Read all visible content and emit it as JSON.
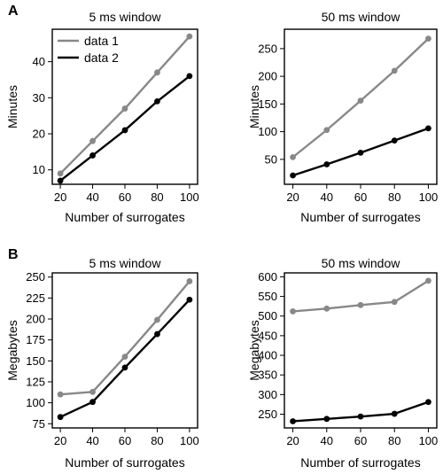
{
  "panel_labels": [
    "A",
    "B"
  ],
  "chart_data": [
    {
      "type": "line",
      "panel": "A",
      "title": "5 ms window",
      "xlabel": "Number of surrogates",
      "ylabel": "Minutes",
      "x": [
        20,
        40,
        60,
        80,
        100
      ],
      "xlim": [
        15,
        105
      ],
      "ylim": [
        6,
        49
      ],
      "xticks": [
        "20",
        "40",
        "60",
        "80",
        "100"
      ],
      "yticks": [
        "10",
        "20",
        "30",
        "40"
      ],
      "grid": false,
      "legend": "top-left",
      "series": [
        {
          "name": "data 1",
          "color": "#888888",
          "values": [
            9,
            18,
            27,
            37,
            47
          ]
        },
        {
          "name": "data 2",
          "color": "#000000",
          "values": [
            7,
            14,
            21,
            29,
            36
          ]
        }
      ]
    },
    {
      "type": "line",
      "panel": "A",
      "title": "50 ms window",
      "xlabel": "Number of surrogates",
      "ylabel": "Minutes",
      "x": [
        20,
        40,
        60,
        80,
        100
      ],
      "xlim": [
        15,
        105
      ],
      "ylim": [
        5,
        285
      ],
      "xticks": [
        "20",
        "40",
        "60",
        "80",
        "100"
      ],
      "yticks": [
        "50",
        "100",
        "150",
        "200",
        "250"
      ],
      "grid": false,
      "series": [
        {
          "color": "#888888",
          "values": [
            54,
            103,
            156,
            210,
            268
          ]
        },
        {
          "color": "#000000",
          "values": [
            21,
            41,
            62,
            84,
            106
          ]
        }
      ]
    },
    {
      "type": "line",
      "panel": "B",
      "title": "5 ms window",
      "xlabel": "Number of surrogates",
      "ylabel": "Megabytes",
      "x": [
        20,
        40,
        60,
        80,
        100
      ],
      "xlim": [
        15,
        105
      ],
      "ylim": [
        70,
        255
      ],
      "xticks": [
        "20",
        "40",
        "60",
        "80",
        "100"
      ],
      "yticks": [
        "75",
        "100",
        "125",
        "150",
        "175",
        "200",
        "225",
        "250"
      ],
      "grid": false,
      "series": [
        {
          "color": "#888888",
          "values": [
            110,
            113,
            155,
            199,
            245
          ]
        },
        {
          "color": "#000000",
          "values": [
            83,
            101,
            142,
            182,
            223
          ]
        }
      ]
    },
    {
      "type": "line",
      "panel": "B",
      "title": "50 ms window",
      "xlabel": "Number of surrogates",
      "ylabel": "Megabytes",
      "x": [
        20,
        40,
        60,
        80,
        100
      ],
      "xlim": [
        15,
        105
      ],
      "ylim": [
        215,
        610
      ],
      "xticks": [
        "20",
        "40",
        "60",
        "80",
        "100"
      ],
      "yticks": [
        "250",
        "300",
        "350",
        "400",
        "450",
        "500",
        "550",
        "600"
      ],
      "grid": false,
      "series": [
        {
          "color": "#888888",
          "values": [
            512,
            519,
            528,
            536,
            590
          ]
        },
        {
          "color": "#000000",
          "values": [
            232,
            238,
            244,
            251,
            281
          ]
        }
      ]
    }
  ]
}
